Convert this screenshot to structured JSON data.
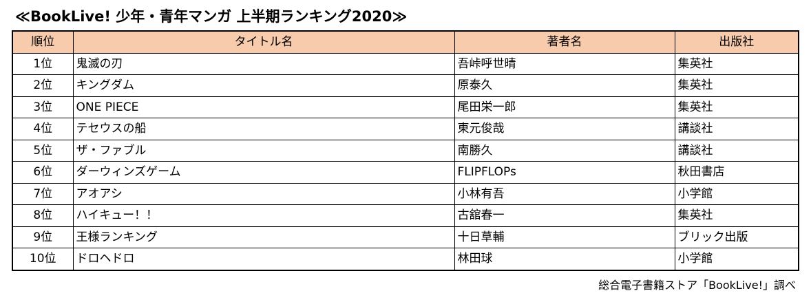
{
  "title": "≪BookLive! 少年・青年マンガ 上半期ランキング2020≫",
  "table": {
    "headers": {
      "rank": "順位",
      "title": "タイトル名",
      "author": "著者名",
      "publisher": "出版社"
    },
    "rows": [
      {
        "rank": "1位",
        "title": "鬼滅の刃",
        "author": "吾峠呼世晴",
        "publisher": "集英社"
      },
      {
        "rank": "2位",
        "title": "キングダム",
        "author": "原泰久",
        "publisher": "集英社"
      },
      {
        "rank": "3位",
        "title": "ONE PIECE",
        "author": "尾田栄一郎",
        "publisher": "集英社"
      },
      {
        "rank": "4位",
        "title": "テセウスの船",
        "author": "東元俊哉",
        "publisher": "講談社"
      },
      {
        "rank": "5位",
        "title": "ザ・ファブル",
        "author": "南勝久",
        "publisher": "講談社"
      },
      {
        "rank": "6位",
        "title": "ダーウィンズゲーム",
        "author": "FLIPFLOPs",
        "publisher": "秋田書店"
      },
      {
        "rank": "7位",
        "title": "アオアシ",
        "author": "小林有吾",
        "publisher": "小学館"
      },
      {
        "rank": "8位",
        "title": "ハイキュー！！",
        "author": "古舘春一",
        "publisher": "集英社"
      },
      {
        "rank": "9位",
        "title": "王様ランキング",
        "author": "十日草輔",
        "publisher": "ブリック出版"
      },
      {
        "rank": "10位",
        "title": "ドロヘドロ",
        "author": "林田球",
        "publisher": "小学館"
      }
    ]
  },
  "source": "総合電子書籍ストア「BookLive!」調べ",
  "colors": {
    "header_background": "#f8cbad",
    "border": "#000000"
  }
}
